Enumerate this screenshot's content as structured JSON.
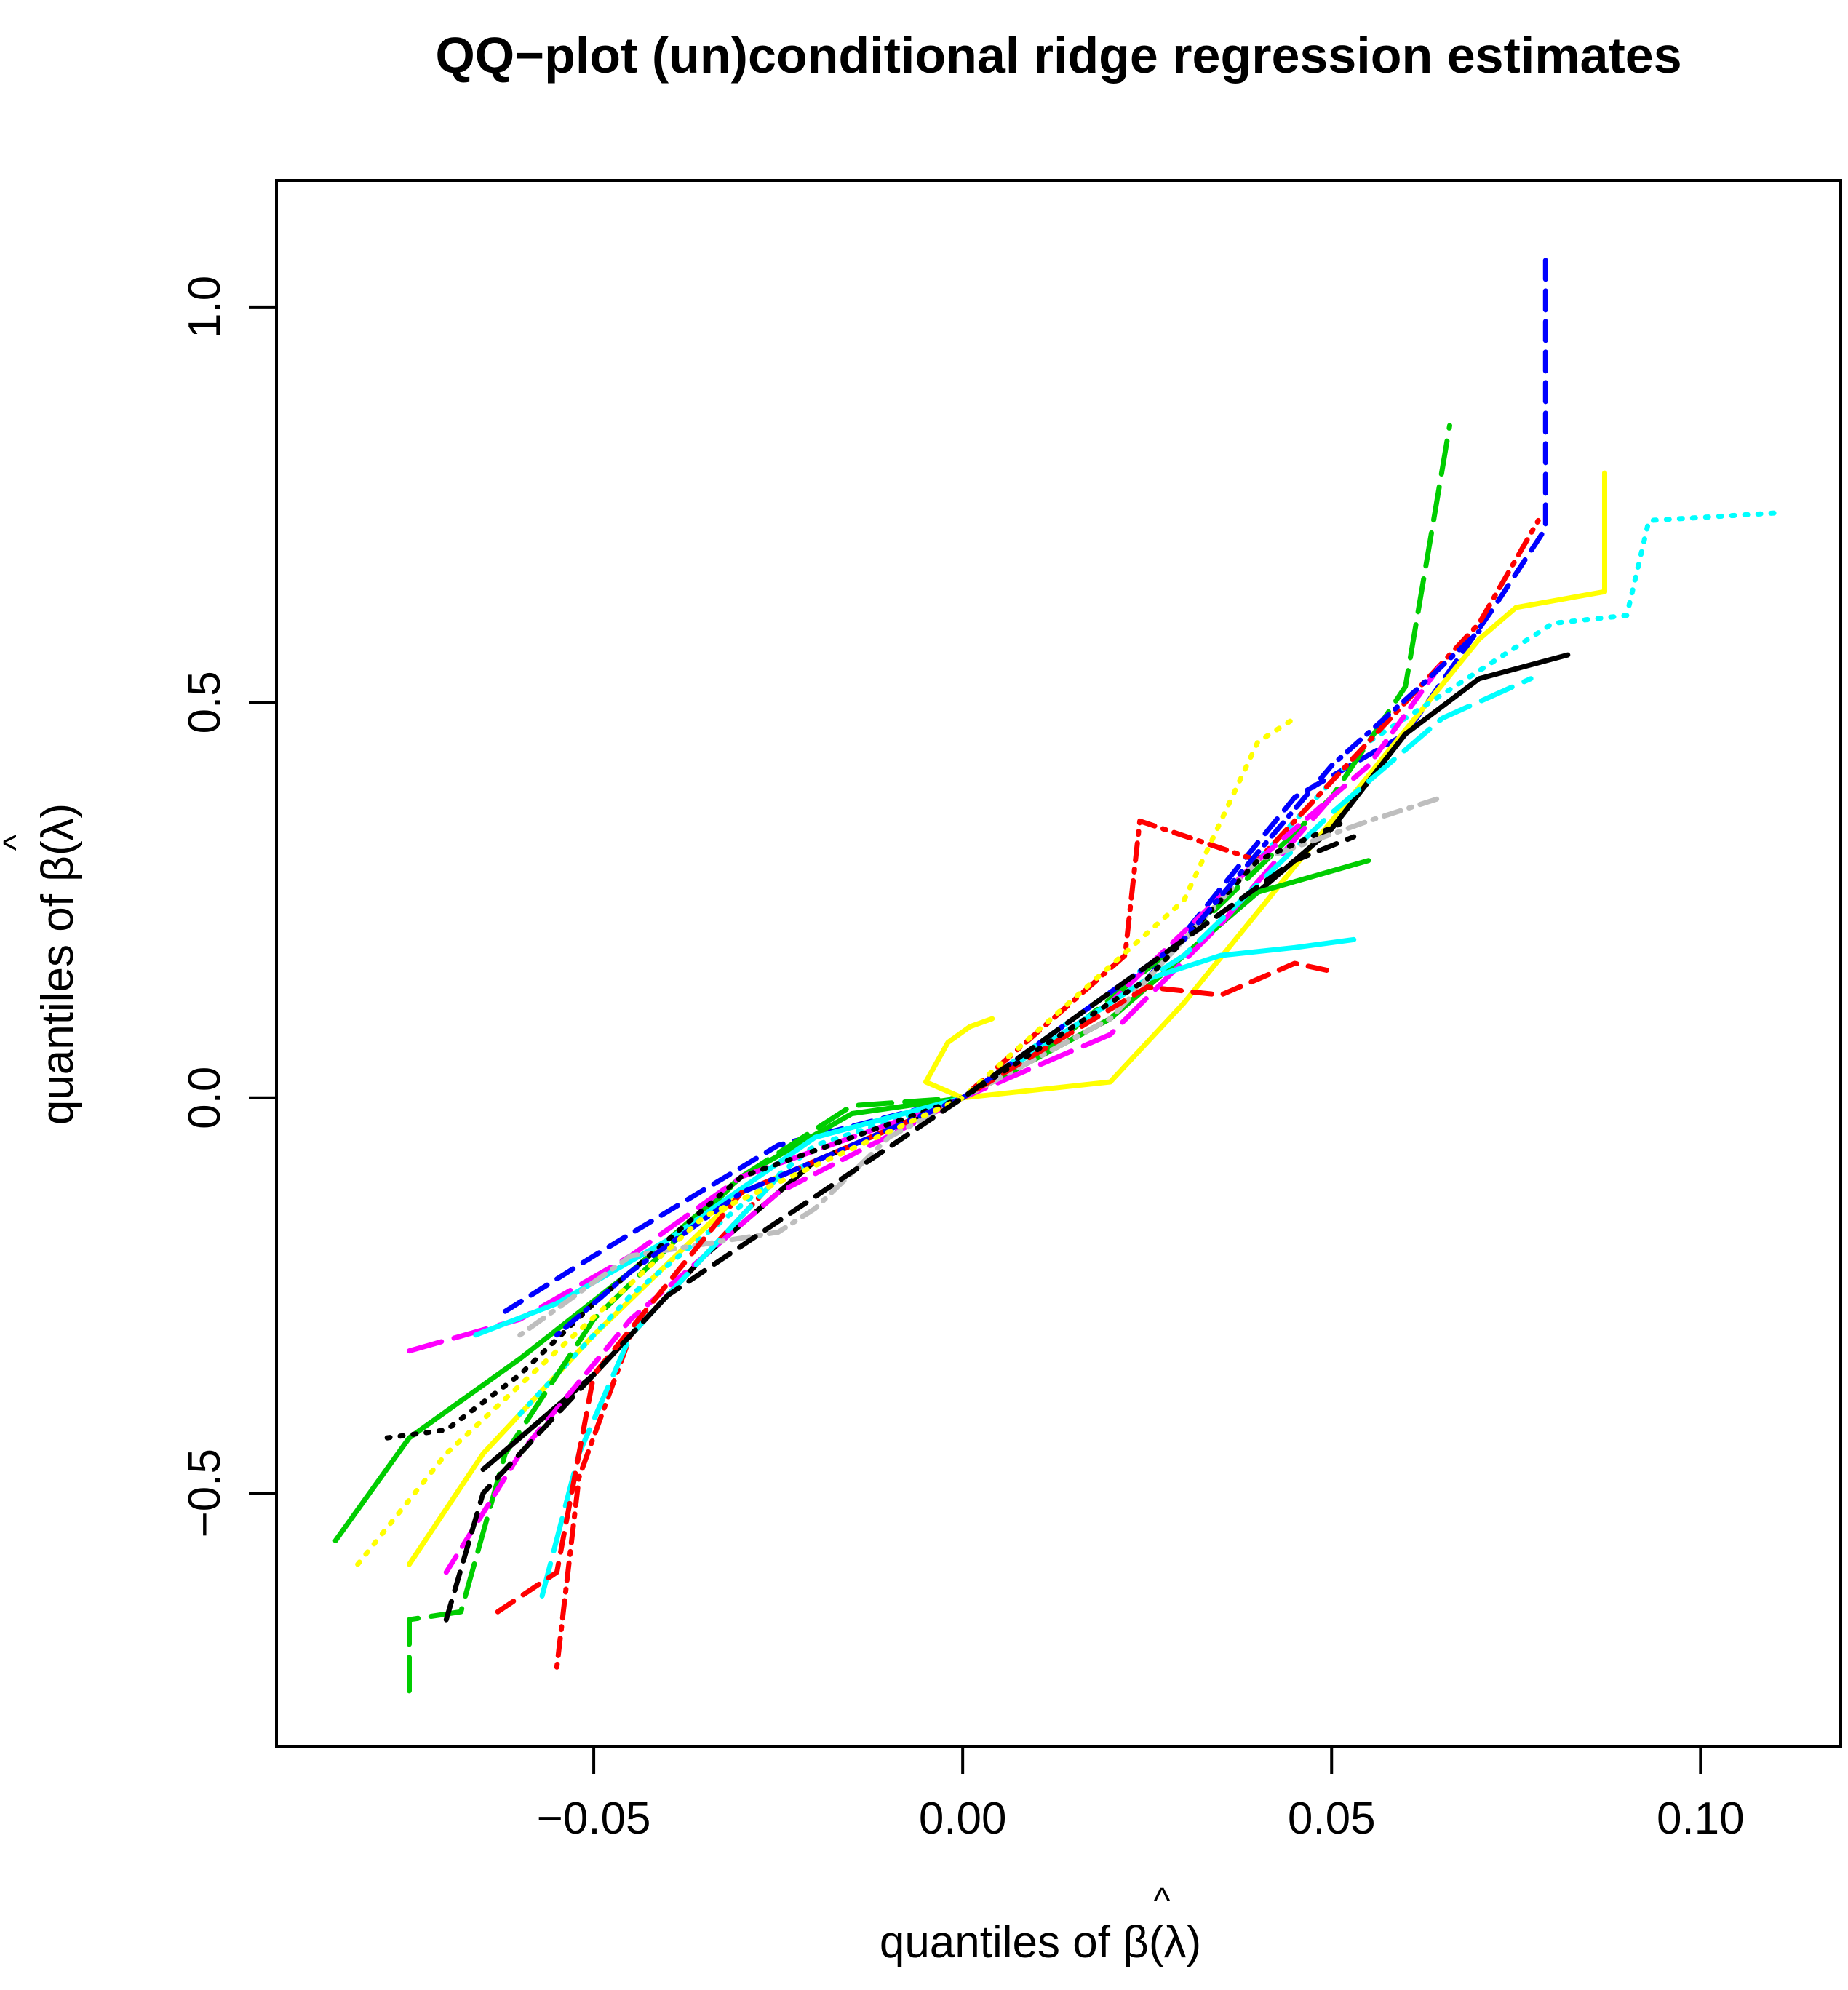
{
  "chart_data": {
    "type": "line",
    "title": "QQ−plot (un)conditional ridge regression estimates",
    "xlabel": {
      "prefix": "quantiles of ",
      "symbol": "β",
      "hat": "^",
      "suffix": "(λ)"
    },
    "ylabel": {
      "prefix": "quantiles of ",
      "symbol": "β",
      "hat": "^",
      "suffix": "(λ)"
    },
    "xlim": [
      -0.093,
      0.119
    ],
    "ylim": [
      -0.82,
      1.16
    ],
    "x_ticks": [
      -0.05,
      0.0,
      0.05,
      0.1
    ],
    "x_tick_labels": [
      "−0.05",
      "0.00",
      "0.05",
      "0.10"
    ],
    "y_ticks": [
      -0.5,
      0.0,
      0.5,
      1.0
    ],
    "y_tick_labels": [
      "−0.5",
      "0.0",
      "0.5",
      "1.0"
    ],
    "grid": false,
    "legend": "none",
    "series": [
      {
        "color": "#0000ff",
        "dash": "dashed",
        "points": [
          [
            -0.062,
            -0.27
          ],
          [
            -0.05,
            -0.2
          ],
          [
            -0.025,
            -0.06
          ],
          [
            0.0,
            0.0
          ],
          [
            0.025,
            0.15
          ],
          [
            0.045,
            0.38
          ],
          [
            0.06,
            0.46
          ],
          [
            0.072,
            0.62
          ],
          [
            0.079,
            0.72
          ],
          [
            0.079,
            1.06
          ]
        ]
      },
      {
        "color": "#ffff00",
        "dash": "solid",
        "points": [
          [
            -0.075,
            -0.59
          ],
          [
            -0.065,
            -0.45
          ],
          [
            -0.05,
            -0.3
          ],
          [
            -0.03,
            -0.12
          ],
          [
            0.0,
            0.0
          ],
          [
            0.02,
            0.02
          ],
          [
            0.03,
            0.12
          ],
          [
            0.05,
            0.35
          ],
          [
            0.07,
            0.58
          ],
          [
            0.075,
            0.62
          ],
          [
            0.087,
            0.64
          ],
          [
            0.087,
            0.79
          ]
        ]
      },
      {
        "color": "#00ffff",
        "dash": "dotted",
        "points": [
          [
            -0.06,
            -0.4
          ],
          [
            -0.045,
            -0.25
          ],
          [
            -0.02,
            -0.06
          ],
          [
            0.0,
            0.0
          ],
          [
            0.03,
            0.2
          ],
          [
            0.055,
            0.45
          ],
          [
            0.08,
            0.6
          ],
          [
            0.09,
            0.61
          ],
          [
            0.093,
            0.73
          ],
          [
            0.111,
            0.74
          ]
        ]
      },
      {
        "color": "#00cd00",
        "dash": "longdash",
        "points": [
          [
            -0.075,
            -0.75
          ],
          [
            -0.075,
            -0.66
          ],
          [
            -0.068,
            -0.65
          ],
          [
            -0.062,
            -0.45
          ],
          [
            -0.05,
            -0.28
          ],
          [
            -0.03,
            -0.1
          ],
          [
            -0.015,
            -0.01
          ],
          [
            0.0,
            0.0
          ],
          [
            0.01,
            0.05
          ],
          [
            0.03,
            0.2
          ],
          [
            0.05,
            0.38
          ],
          [
            0.06,
            0.52
          ],
          [
            0.066,
            0.85
          ]
        ]
      },
      {
        "color": "#ff0000",
        "dash": "dotdash",
        "points": [
          [
            -0.055,
            -0.72
          ],
          [
            -0.052,
            -0.48
          ],
          [
            -0.045,
            -0.3
          ],
          [
            -0.025,
            -0.1
          ],
          [
            0.0,
            0.0
          ],
          [
            0.022,
            0.18
          ],
          [
            0.024,
            0.35
          ],
          [
            0.04,
            0.3
          ],
          [
            0.055,
            0.45
          ],
          [
            0.07,
            0.6
          ],
          [
            0.078,
            0.73
          ]
        ]
      },
      {
        "color": "#000000",
        "dash": "solid",
        "points": [
          [
            -0.065,
            -0.47
          ],
          [
            -0.05,
            -0.35
          ],
          [
            -0.035,
            -0.2
          ],
          [
            -0.02,
            -0.08
          ],
          [
            0.0,
            0.0
          ],
          [
            0.02,
            0.1
          ],
          [
            0.035,
            0.22
          ],
          [
            0.05,
            0.34
          ],
          [
            0.06,
            0.46
          ],
          [
            0.07,
            0.53
          ],
          [
            0.082,
            0.56
          ]
        ]
      },
      {
        "color": "#00cd00",
        "dash": "solid",
        "points": [
          [
            -0.085,
            -0.56
          ],
          [
            -0.075,
            -0.43
          ],
          [
            -0.06,
            -0.33
          ],
          [
            -0.045,
            -0.22
          ],
          [
            -0.03,
            -0.1
          ],
          [
            -0.015,
            -0.02
          ],
          [
            0.0,
            0.0
          ],
          [
            0.02,
            0.1
          ],
          [
            0.04,
            0.26
          ],
          [
            0.055,
            0.3
          ]
        ]
      },
      {
        "color": "#ff00ff",
        "dash": "dashed",
        "points": [
          [
            -0.07,
            -0.6
          ],
          [
            -0.06,
            -0.45
          ],
          [
            -0.045,
            -0.28
          ],
          [
            -0.025,
            -0.12
          ],
          [
            0.0,
            0.0
          ],
          [
            0.02,
            0.12
          ],
          [
            0.04,
            0.3
          ],
          [
            0.055,
            0.42
          ],
          [
            0.065,
            0.55
          ]
        ]
      },
      {
        "color": "#ff00ff",
        "dash": "longdash",
        "points": [
          [
            -0.075,
            -0.32
          ],
          [
            -0.06,
            -0.28
          ],
          [
            -0.045,
            -0.2
          ],
          [
            -0.03,
            -0.1
          ],
          [
            0.0,
            0.0
          ],
          [
            0.02,
            0.08
          ],
          [
            0.035,
            0.22
          ],
          [
            0.05,
            0.38
          ]
        ]
      },
      {
        "color": "#00ffff",
        "dash": "solid",
        "points": [
          [
            -0.066,
            -0.3
          ],
          [
            -0.055,
            -0.26
          ],
          [
            -0.04,
            -0.18
          ],
          [
            -0.02,
            -0.05
          ],
          [
            0.0,
            0.0
          ],
          [
            0.025,
            0.15
          ],
          [
            0.035,
            0.18
          ],
          [
            0.045,
            0.19
          ],
          [
            0.053,
            0.2
          ]
        ]
      },
      {
        "color": "#00ffff",
        "dash": "longdash",
        "points": [
          [
            -0.057,
            -0.63
          ],
          [
            -0.052,
            -0.45
          ],
          [
            -0.045,
            -0.3
          ],
          [
            -0.025,
            -0.1
          ],
          [
            0.0,
            0.0
          ],
          [
            0.03,
            0.18
          ],
          [
            0.05,
            0.36
          ],
          [
            0.065,
            0.48
          ],
          [
            0.077,
            0.53
          ]
        ]
      },
      {
        "color": "#bebebe",
        "dash": "dotdash",
        "points": [
          [
            -0.06,
            -0.3
          ],
          [
            -0.045,
            -0.2
          ],
          [
            -0.025,
            -0.17
          ],
          [
            -0.02,
            -0.14
          ],
          [
            -0.01,
            -0.05
          ],
          [
            0.0,
            0.0
          ],
          [
            0.02,
            0.1
          ],
          [
            0.04,
            0.3
          ],
          [
            0.055,
            0.35
          ],
          [
            0.065,
            0.38
          ]
        ]
      },
      {
        "color": "#ff0000",
        "dash": "dashed",
        "points": [
          [
            -0.063,
            -0.65
          ],
          [
            -0.055,
            -0.6
          ],
          [
            -0.05,
            -0.35
          ],
          [
            -0.03,
            -0.12
          ],
          [
            0.0,
            0.0
          ],
          [
            0.025,
            0.14
          ],
          [
            0.035,
            0.13
          ],
          [
            0.045,
            0.17
          ],
          [
            0.05,
            0.16
          ]
        ]
      },
      {
        "color": "#ffff00",
        "dash": "solid",
        "points": [
          [
            0.0,
            0.0
          ],
          [
            -0.005,
            0.02
          ],
          [
            -0.002,
            0.07
          ],
          [
            0.001,
            0.09
          ],
          [
            0.004,
            0.1
          ]
        ]
      },
      {
        "color": "#000000",
        "dash": "dotted",
        "points": [
          [
            -0.078,
            -0.43
          ],
          [
            -0.07,
            -0.42
          ],
          [
            -0.06,
            -0.35
          ],
          [
            -0.05,
            -0.26
          ],
          [
            -0.03,
            -0.1
          ],
          [
            0.0,
            0.0
          ],
          [
            0.025,
            0.15
          ],
          [
            0.04,
            0.3
          ],
          [
            0.052,
            0.35
          ]
        ]
      },
      {
        "color": "#0000ff",
        "dash": "dotdash",
        "points": [
          [
            -0.055,
            -0.3
          ],
          [
            -0.045,
            -0.22
          ],
          [
            -0.03,
            -0.12
          ],
          [
            0.0,
            0.0
          ],
          [
            0.03,
            0.2
          ],
          [
            0.05,
            0.42
          ],
          [
            0.062,
            0.52
          ],
          [
            0.07,
            0.59
          ]
        ]
      },
      {
        "color": "#ffff00",
        "dash": "dotted",
        "points": [
          [
            -0.082,
            -0.59
          ],
          [
            -0.07,
            -0.45
          ],
          [
            -0.055,
            -0.32
          ],
          [
            -0.035,
            -0.15
          ],
          [
            0.0,
            0.0
          ],
          [
            0.03,
            0.25
          ],
          [
            0.04,
            0.45
          ],
          [
            0.045,
            0.48
          ]
        ]
      },
      {
        "color": "#000000",
        "dash": "dashed",
        "points": [
          [
            -0.07,
            -0.66
          ],
          [
            -0.065,
            -0.5
          ],
          [
            -0.055,
            -0.4
          ],
          [
            -0.04,
            -0.25
          ],
          [
            0.0,
            0.0
          ],
          [
            0.03,
            0.2
          ],
          [
            0.045,
            0.3
          ],
          [
            0.053,
            0.33
          ]
        ]
      }
    ]
  }
}
